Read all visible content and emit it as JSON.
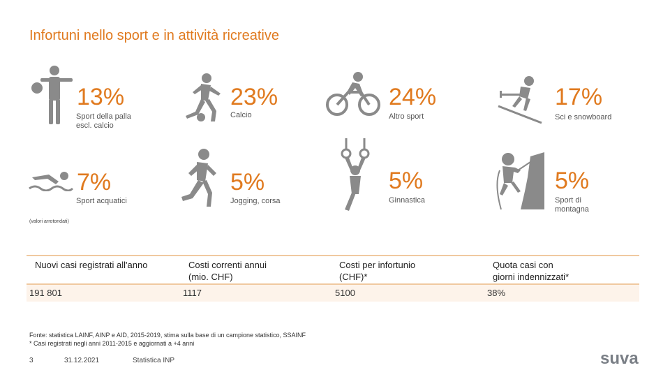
{
  "title": "Infortuni nello sport e in attività ricreative",
  "categories": [
    {
      "id": "ball-sports",
      "pct": "13%",
      "label": "Sport della palla\nescl. calcio",
      "icon": "ball-player-icon"
    },
    {
      "id": "football",
      "pct": "23%",
      "label": "Calcio",
      "icon": "football-player-icon"
    },
    {
      "id": "other-sports",
      "pct": "24%",
      "label": "Altro sport",
      "icon": "cyclist-icon"
    },
    {
      "id": "ski",
      "pct": "17%",
      "label": "Sci e snowboard",
      "icon": "skier-icon"
    },
    {
      "id": "water",
      "pct": "7%",
      "label": "Sport acquatici",
      "icon": "swimmer-icon"
    },
    {
      "id": "jogging",
      "pct": "5%",
      "label": "Jogging, corsa",
      "icon": "runner-icon"
    },
    {
      "id": "gym",
      "pct": "5%",
      "label": "Ginnastica",
      "icon": "gymnast-rings-icon"
    },
    {
      "id": "mountain",
      "pct": "5%",
      "label": "Sport di\nmontagna",
      "icon": "climber-icon"
    }
  ],
  "note": "(valori arrotondati)",
  "table": {
    "headers": [
      "Nuovi casi registrati all'anno",
      "Costi correnti annui\n(mio. CHF)",
      "Costi per infortunio\n(CHF)*",
      "Quota casi con\ngiorni indennizzati*"
    ],
    "values": [
      "191 801",
      "1117",
      "5100",
      "38%"
    ]
  },
  "source_line1": "Fonte: statistica LAINF, AINP e AID, 2015-2019, stima sulla base di un campione statistico, SSAINF",
  "source_line2": "* Casi registrati negli anni 2011-2015 e aggiornati a +4 anni",
  "footer": {
    "page": "3",
    "date": "31.12.2021",
    "label": "Statistica INP"
  },
  "logo": "suva",
  "colors": {
    "accent": "#e07a1f",
    "icon": "#8a8a8a"
  }
}
